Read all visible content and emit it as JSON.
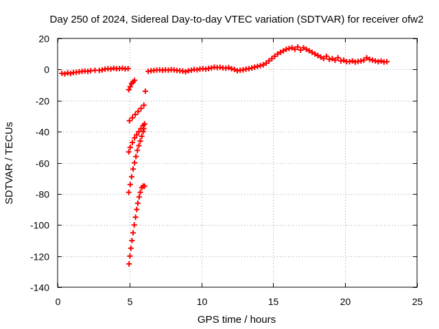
{
  "chart_data": {
    "type": "scatter",
    "title": "Day 250 of 2024, Sidereal Day-to-day VTEC variation (SDTVAR) for receiver ofw2",
    "xlabel": "GPS time / hours",
    "ylabel": "SDTVAR / TECUs",
    "xlim": [
      0,
      25
    ],
    "ylim": [
      -140,
      20
    ],
    "xticks": [
      0,
      5,
      10,
      15,
      20,
      25
    ],
    "yticks": [
      20,
      0,
      -20,
      -40,
      -60,
      -80,
      -100,
      -120,
      -140
    ],
    "grid": true,
    "marker": "+",
    "marker_color": "#ff0000",
    "series": [
      {
        "name": "SDTVAR main trace",
        "points": [
          [
            0.3,
            -2.5
          ],
          [
            0.5,
            -2.8
          ],
          [
            0.7,
            -2.2
          ],
          [
            0.9,
            -2.6
          ],
          [
            1.1,
            -2.0
          ],
          [
            1.3,
            -1.8
          ],
          [
            1.5,
            -1.5
          ],
          [
            1.7,
            -1.2
          ],
          [
            1.9,
            -1.0
          ],
          [
            2.1,
            -1.2
          ],
          [
            2.3,
            -0.8
          ],
          [
            2.6,
            -0.5
          ],
          [
            2.9,
            -0.6
          ],
          [
            3.1,
            -0.3
          ],
          [
            3.3,
            0.2
          ],
          [
            3.5,
            0.5
          ],
          [
            3.7,
            0.3
          ],
          [
            3.9,
            0.8
          ],
          [
            4.1,
            0.5
          ],
          [
            4.3,
            0.6
          ],
          [
            4.5,
            0.8
          ],
          [
            4.7,
            0.4
          ],
          [
            4.9,
            0.6
          ],
          [
            6.3,
            -1.2
          ],
          [
            6.5,
            -0.8
          ],
          [
            6.7,
            -0.6
          ],
          [
            6.9,
            -0.4
          ],
          [
            7.1,
            -0.3
          ],
          [
            7.3,
            -0.5
          ],
          [
            7.5,
            -0.2
          ],
          [
            7.7,
            -0.4
          ],
          [
            7.9,
            -0.1
          ],
          [
            8.1,
            -0.3
          ],
          [
            8.3,
            -0.6
          ],
          [
            8.5,
            -0.8
          ],
          [
            8.7,
            -1.0
          ],
          [
            8.9,
            -1.5
          ],
          [
            9.1,
            -0.8
          ],
          [
            9.3,
            -0.5
          ],
          [
            9.5,
            0.0
          ],
          [
            9.7,
            -0.2
          ],
          [
            9.9,
            0.3
          ],
          [
            10.1,
            0.5
          ],
          [
            10.3,
            0.2
          ],
          [
            10.5,
            0.6
          ],
          [
            10.7,
            1.0
          ],
          [
            10.9,
            1.5
          ],
          [
            11.1,
            1.2
          ],
          [
            11.3,
            1.4
          ],
          [
            11.5,
            1.0
          ],
          [
            11.7,
            0.8
          ],
          [
            11.9,
            1.2
          ],
          [
            12.1,
            0.5
          ],
          [
            12.3,
            0.0
          ],
          [
            12.5,
            -0.8
          ],
          [
            12.7,
            -0.5
          ],
          [
            12.9,
            -0.2
          ],
          [
            13.1,
            0.2
          ],
          [
            13.3,
            0.5
          ],
          [
            13.5,
            1.0
          ],
          [
            13.7,
            1.5
          ],
          [
            13.9,
            2.0
          ],
          [
            14.1,
            2.5
          ],
          [
            14.3,
            3.0
          ],
          [
            14.5,
            4.0
          ],
          [
            14.7,
            5.5
          ],
          [
            14.9,
            7.0
          ],
          [
            15.1,
            8.5
          ],
          [
            15.3,
            10.0
          ],
          [
            15.5,
            11.0
          ],
          [
            15.7,
            12.0
          ],
          [
            15.9,
            13.0
          ],
          [
            16.1,
            13.5
          ],
          [
            16.3,
            14.0
          ],
          [
            16.5,
            13.0
          ],
          [
            16.7,
            14.5
          ],
          [
            16.9,
            12.5
          ],
          [
            17.1,
            14.0
          ],
          [
            17.3,
            13.0
          ],
          [
            17.5,
            12.0
          ],
          [
            17.7,
            11.0
          ],
          [
            17.9,
            10.0
          ],
          [
            18.1,
            9.0
          ],
          [
            18.3,
            8.0
          ],
          [
            18.5,
            7.0
          ],
          [
            18.7,
            8.5
          ],
          [
            18.9,
            6.5
          ],
          [
            19.1,
            7.0
          ],
          [
            19.3,
            6.0
          ],
          [
            19.5,
            7.5
          ],
          [
            19.7,
            5.5
          ],
          [
            19.9,
            6.0
          ],
          [
            20.1,
            5.0
          ],
          [
            20.3,
            5.0
          ],
          [
            20.5,
            5.5
          ],
          [
            20.7,
            4.8
          ],
          [
            20.9,
            5.2
          ],
          [
            21.1,
            5.5
          ],
          [
            21.3,
            6.0
          ],
          [
            21.5,
            7.5
          ],
          [
            21.7,
            6.5
          ],
          [
            21.9,
            6.0
          ],
          [
            22.1,
            5.5
          ],
          [
            22.3,
            5.0
          ],
          [
            22.5,
            5.5
          ],
          [
            22.7,
            4.8
          ],
          [
            22.9,
            5.0
          ]
        ]
      },
      {
        "name": "SDTVAR descending arcs",
        "points": [
          [
            4.95,
            -13
          ],
          [
            5.05,
            -11
          ],
          [
            5.15,
            -9
          ],
          [
            5.25,
            -8
          ],
          [
            5.35,
            -7
          ],
          [
            5.0,
            -33
          ],
          [
            5.2,
            -31
          ],
          [
            5.4,
            -29
          ],
          [
            5.6,
            -27
          ],
          [
            5.8,
            -25
          ],
          [
            6.0,
            -23
          ],
          [
            6.1,
            -14
          ],
          [
            4.95,
            -53
          ],
          [
            5.05,
            -50
          ],
          [
            5.2,
            -47
          ],
          [
            5.35,
            -44
          ],
          [
            5.5,
            -42
          ],
          [
            5.65,
            -40
          ],
          [
            5.8,
            -38
          ],
          [
            5.95,
            -36
          ],
          [
            6.05,
            -35
          ],
          [
            4.95,
            -79
          ],
          [
            5.05,
            -74
          ],
          [
            5.15,
            -69
          ],
          [
            5.25,
            -64
          ],
          [
            5.35,
            -60
          ],
          [
            5.45,
            -56
          ],
          [
            5.55,
            -52
          ],
          [
            5.65,
            -49
          ],
          [
            5.75,
            -46
          ],
          [
            5.85,
            -43
          ],
          [
            5.95,
            -40
          ],
          [
            6.0,
            -38
          ],
          [
            4.97,
            -125
          ],
          [
            5.03,
            -120
          ],
          [
            5.1,
            -115
          ],
          [
            5.17,
            -110
          ],
          [
            5.25,
            -105
          ],
          [
            5.33,
            -100
          ],
          [
            5.42,
            -95
          ],
          [
            5.5,
            -90
          ],
          [
            5.58,
            -86
          ],
          [
            5.67,
            -82
          ],
          [
            5.75,
            -79
          ],
          [
            5.85,
            -76
          ],
          [
            5.95,
            -75
          ],
          [
            6.05,
            -75
          ]
        ]
      }
    ]
  }
}
